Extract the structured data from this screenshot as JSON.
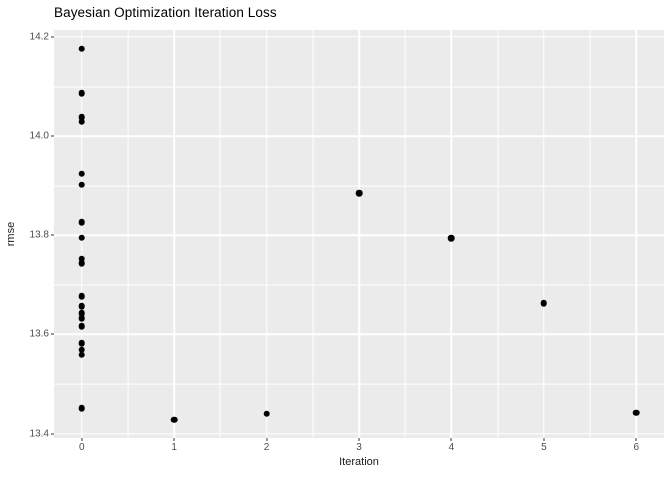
{
  "chart_data": {
    "type": "scatter",
    "title": "Bayesian Optimization Iteration Loss",
    "xlabel": "Iteration",
    "ylabel": "rmse",
    "x_ticks": [
      {
        "value": 0,
        "label": "0"
      },
      {
        "value": 1,
        "label": "1"
      },
      {
        "value": 2,
        "label": "2"
      },
      {
        "value": 3,
        "label": "3"
      },
      {
        "value": 4,
        "label": "4"
      },
      {
        "value": 5,
        "label": "5"
      },
      {
        "value": 6,
        "label": "6"
      }
    ],
    "y_ticks": [
      {
        "value": 13.4,
        "label": "13.4"
      },
      {
        "value": 13.6,
        "label": "13.6"
      },
      {
        "value": 13.8,
        "label": "13.8"
      },
      {
        "value": 14.0,
        "label": "14.0"
      },
      {
        "value": 14.2,
        "label": "14.2"
      }
    ],
    "xlim": [
      -0.3,
      6.3
    ],
    "ylim": [
      13.392,
      14.214
    ],
    "grid": {
      "major": true,
      "minor": true
    },
    "legend": "none",
    "colors": {
      "panel_bg": "#EBEBEB",
      "grid": "#FFFFFF",
      "point": "#000000",
      "tick_label": "#4D4D4D",
      "tick_mark": "#333333"
    },
    "points": [
      {
        "x": 0,
        "y": 14.176
      },
      {
        "x": 0,
        "y": 14.087
      },
      {
        "x": 0,
        "y": 14.038
      },
      {
        "x": 0,
        "y": 14.029
      },
      {
        "x": 0,
        "y": 13.924
      },
      {
        "x": 0,
        "y": 13.902
      },
      {
        "x": 0,
        "y": 13.826
      },
      {
        "x": 0,
        "y": 13.795
      },
      {
        "x": 0,
        "y": 13.753
      },
      {
        "x": 0,
        "y": 13.743
      },
      {
        "x": 0,
        "y": 13.677
      },
      {
        "x": 0,
        "y": 13.657
      },
      {
        "x": 0,
        "y": 13.643
      },
      {
        "x": 0,
        "y": 13.633
      },
      {
        "x": 0,
        "y": 13.617
      },
      {
        "x": 0,
        "y": 13.582
      },
      {
        "x": 0,
        "y": 13.569
      },
      {
        "x": 0,
        "y": 13.559
      },
      {
        "x": 0,
        "y": 13.451
      },
      {
        "x": 1,
        "y": 13.428
      },
      {
        "x": 2,
        "y": 13.44
      },
      {
        "x": 3,
        "y": 13.885
      },
      {
        "x": 4,
        "y": 13.794
      },
      {
        "x": 5,
        "y": 13.663
      },
      {
        "x": 6,
        "y": 13.442
      }
    ]
  }
}
